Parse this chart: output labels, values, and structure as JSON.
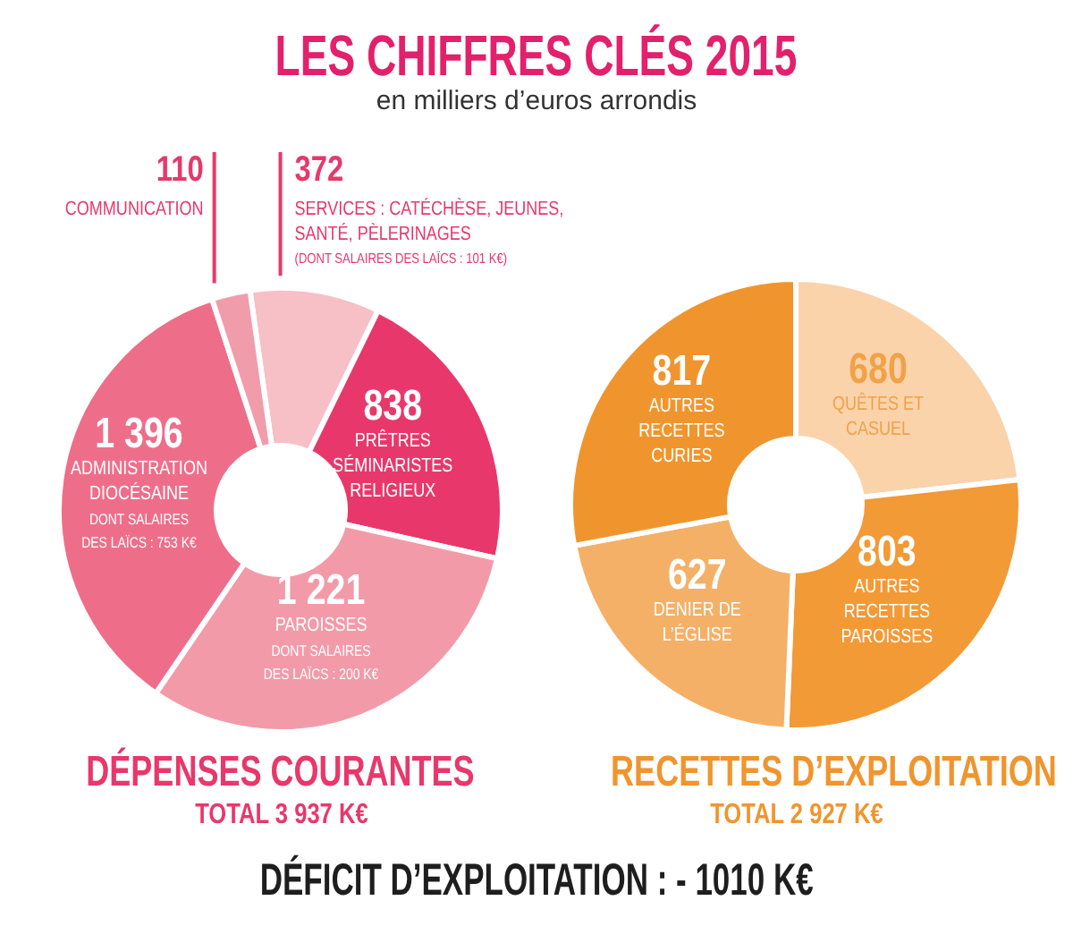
{
  "chart_data": [
    {
      "type": "other",
      "title": "LES CHIFFRES CLÉS 2015",
      "subtitle": "en milliers d’euros arrondis"
    },
    {
      "type": "donut",
      "title": "DÉPENSES COURANTES",
      "subtitle": "TOTAL 3 937 K€",
      "categories": [
        "SERVICES : CATÉCHÈSE, JEUNES, SANTÉ, PÈLERINAGES",
        "PRÊTRES SÉMINARISTES RELIGIEUX",
        "PAROISSES",
        "ADMINISTRATION DIOCÉSAINE",
        "COMMUNICATION"
      ],
      "values": [
        372,
        838,
        1221,
        1396,
        110
      ],
      "value_labels": [
        "372",
        "838",
        "1 221",
        "1 396",
        "110"
      ],
      "colors": [
        "#f7bfc6",
        "#e8386b",
        "#f39aa9",
        "#ee6e8a",
        "#f19cab"
      ],
      "annotations": [
        {
          "text": "(DONT SALAIRES DES LAÏCS : 101 K€)",
          "x": "SERVICES : CATÉCHÈSE, JEUNES, SANTÉ, PÈLERINAGES"
        },
        {
          "text": "DONT SALAIRES DES LAÏCS : 200 K€",
          "x": "PAROISSES"
        },
        {
          "text": "DONT SALAIRES DES LAÏCS : 753 K€",
          "x": "ADMINISTRATION DIOCÉSAINE"
        }
      ]
    },
    {
      "type": "donut",
      "title": "RECETTES D’EXPLOITATION",
      "subtitle": "TOTAL 2 927 K€",
      "categories": [
        "QUÊTES ET CASUEL",
        "AUTRES RECETTES PAROISSES",
        "DENIER DE L’ÉGLISE",
        "AUTRES RECETTES CURIES"
      ],
      "values": [
        680,
        803,
        627,
        817
      ],
      "data_labels": true,
      "colors": [
        "#fad3ab",
        "#f29a36",
        "#f5b067",
        "#f0952e"
      ]
    },
    {
      "type": "other",
      "annotations": [
        "DÉFICIT D’EXPLOITATION : - 1010 K€"
      ]
    }
  ]
}
